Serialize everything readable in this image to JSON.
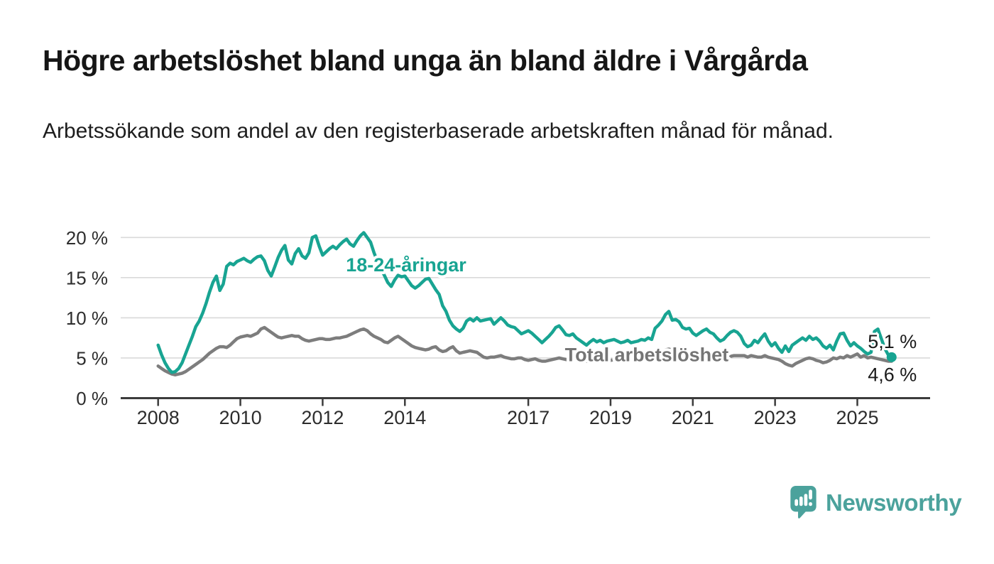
{
  "title": "Högre arbetslöshet bland unga än bland äldre i Vårgårda",
  "subtitle": "Arbetssökande som andel av den registerbaserade arbetskraften månad för månad.",
  "logo": {
    "brand": "Newsworthy",
    "icon": "speech-bubble-bar-chart-icon",
    "color": "#4ba29c"
  },
  "colors": {
    "youth_line": "#18a492",
    "total_line": "#7d7d7d",
    "total_label": "#757575",
    "axis": "#3c3c3c",
    "gridline": "#d9d9d9",
    "axis_text": "#2d2d2d",
    "end_label_text": "#1a1a1a"
  },
  "chart_data": {
    "type": "line",
    "unit": "%",
    "grid": "horizontal-only",
    "legend_position": "inline-labels",
    "x_start_year": 2008,
    "months_per_point": 1,
    "ylim": [
      0,
      21.5
    ],
    "y_axis": {
      "ticks": [
        {
          "value": 0,
          "label": "0 %"
        },
        {
          "value": 5,
          "label": "5 %"
        },
        {
          "value": 10,
          "label": "10 %"
        },
        {
          "value": 15,
          "label": "15 %"
        },
        {
          "value": 20,
          "label": "20 %"
        }
      ]
    },
    "x_axis": {
      "ticks": [
        {
          "year": 2008,
          "label": "2008"
        },
        {
          "year": 2010,
          "label": "2010"
        },
        {
          "year": 2012,
          "label": "2012"
        },
        {
          "year": 2014,
          "label": "2014"
        },
        {
          "year": 2017,
          "label": "2017"
        },
        {
          "year": 2019,
          "label": "2019"
        },
        {
          "year": 2021,
          "label": "2021"
        },
        {
          "year": 2023,
          "label": "2023"
        },
        {
          "year": 2025,
          "label": "2025"
        }
      ]
    },
    "series": [
      {
        "name": "18-24-åringar",
        "color": "#18a492",
        "end_value": 5.1,
        "end_marker": true,
        "end_label": {
          "text": "5,1 %",
          "dx": 1,
          "dy": -13
        },
        "label": {
          "text": "18-24-åringar",
          "year": 2014.03,
          "value": 16.6,
          "color": "#18a492"
        },
        "values": [
          6.6,
          5.4,
          4.4,
          3.7,
          3.2,
          3.3,
          3.7,
          4.4,
          5.5,
          6.6,
          7.7,
          8.9,
          9.6,
          10.6,
          11.8,
          13.2,
          14.4,
          15.2,
          13.4,
          14.2,
          16.4,
          16.8,
          16.6,
          17.0,
          17.2,
          17.4,
          17.1,
          16.9,
          17.3,
          17.6,
          17.7,
          17.1,
          15.9,
          15.2,
          16.3,
          17.5,
          18.4,
          19.0,
          17.2,
          16.7,
          18.0,
          18.6,
          17.7,
          17.4,
          18.1,
          20.0,
          20.2,
          18.9,
          17.8,
          18.2,
          18.6,
          18.9,
          18.6,
          19.1,
          19.5,
          19.8,
          19.2,
          18.9,
          19.6,
          20.2,
          20.6,
          20.0,
          19.4,
          18.1,
          17.0,
          16.1,
          15.3,
          14.4,
          13.9,
          14.7,
          15.3,
          15.1,
          15.2,
          14.6,
          14.0,
          13.7,
          14.0,
          14.4,
          14.8,
          14.9,
          14.2,
          13.5,
          12.9,
          11.5,
          10.8,
          9.7,
          9.0,
          8.6,
          8.3,
          8.7,
          9.6,
          9.9,
          9.6,
          10.0,
          9.6,
          9.7,
          9.8,
          9.9,
          9.2,
          9.6,
          10.0,
          9.6,
          9.1,
          8.9,
          8.8,
          8.4,
          8.0,
          8.2,
          8.4,
          8.1,
          7.7,
          7.3,
          6.9,
          7.3,
          7.7,
          8.2,
          8.8,
          9.0,
          8.5,
          7.9,
          7.8,
          8.0,
          7.5,
          7.2,
          6.9,
          6.6,
          7.0,
          7.3,
          7.0,
          7.2,
          6.9,
          7.1,
          7.2,
          7.3,
          7.1,
          6.9,
          7.0,
          7.2,
          6.9,
          7.0,
          7.1,
          7.3,
          7.2,
          7.5,
          7.3,
          8.7,
          9.1,
          9.6,
          10.4,
          10.8,
          9.7,
          9.8,
          9.5,
          8.8,
          8.6,
          8.7,
          8.1,
          7.8,
          8.1,
          8.4,
          8.6,
          8.2,
          8.0,
          7.5,
          7.1,
          7.3,
          7.8,
          8.2,
          8.4,
          8.2,
          7.7,
          6.8,
          6.4,
          6.6,
          7.2,
          6.9,
          7.5,
          8.0,
          7.1,
          6.5,
          6.9,
          6.2,
          5.7,
          6.5,
          5.8,
          6.6,
          6.9,
          7.2,
          7.5,
          7.2,
          7.7,
          7.3,
          7.5,
          7.1,
          6.5,
          6.2,
          6.6,
          6.0,
          7.1,
          8.0,
          8.1,
          7.2,
          6.5,
          6.9,
          6.5,
          6.2,
          5.8,
          5.5,
          5.7,
          8.3,
          8.6,
          7.4,
          6.2,
          5.4,
          5.1
        ]
      },
      {
        "name": "Total arbetslöshet",
        "color": "#7d7d7d",
        "end_value": 4.6,
        "end_marker": false,
        "end_label": {
          "text": "4,6 %",
          "dx": 1,
          "dy": 28
        },
        "label": {
          "text": "Total arbetslöshet",
          "year": 2019.88,
          "value": 5.39,
          "color": "#757575"
        },
        "values": [
          4.0,
          3.7,
          3.4,
          3.2,
          3.0,
          2.9,
          3.0,
          3.1,
          3.3,
          3.6,
          3.9,
          4.2,
          4.5,
          4.8,
          5.2,
          5.6,
          5.9,
          6.2,
          6.4,
          6.4,
          6.3,
          6.6,
          7.0,
          7.4,
          7.6,
          7.7,
          7.8,
          7.7,
          7.9,
          8.1,
          8.6,
          8.8,
          8.5,
          8.2,
          7.9,
          7.6,
          7.5,
          7.6,
          7.7,
          7.8,
          7.7,
          7.7,
          7.4,
          7.2,
          7.1,
          7.2,
          7.3,
          7.4,
          7.4,
          7.3,
          7.3,
          7.4,
          7.5,
          7.5,
          7.6,
          7.7,
          7.9,
          8.1,
          8.3,
          8.5,
          8.6,
          8.4,
          8.0,
          7.7,
          7.5,
          7.3,
          7.0,
          6.9,
          7.2,
          7.5,
          7.7,
          7.4,
          7.1,
          6.8,
          6.5,
          6.3,
          6.2,
          6.1,
          6.0,
          6.1,
          6.3,
          6.4,
          6.0,
          5.8,
          5.9,
          6.2,
          6.4,
          5.9,
          5.6,
          5.7,
          5.8,
          5.9,
          5.8,
          5.7,
          5.4,
          5.1,
          5.0,
          5.1,
          5.1,
          5.2,
          5.3,
          5.1,
          5.0,
          4.9,
          4.9,
          5.0,
          5.0,
          4.8,
          4.7,
          4.8,
          4.9,
          4.7,
          4.6,
          4.6,
          4.7,
          4.8,
          4.9,
          5.0,
          4.9,
          4.8,
          4.7,
          4.8,
          4.9,
          4.8,
          4.7,
          4.6,
          4.6,
          4.7,
          4.6,
          4.7,
          4.6,
          4.7,
          4.7,
          4.8,
          4.7,
          4.8,
          4.7,
          4.8,
          4.7,
          4.8,
          4.9,
          4.9,
          5.0,
          5.0,
          5.0,
          5.2,
          5.5,
          5.8,
          6.0,
          6.1,
          6.0,
          5.9,
          5.8,
          5.7,
          5.6,
          5.6,
          5.6,
          5.7,
          5.6,
          5.5,
          5.4,
          5.3,
          5.2,
          5.1,
          5.0,
          5.0,
          5.1,
          5.2,
          5.3,
          5.3,
          5.3,
          5.3,
          5.1,
          5.3,
          5.2,
          5.1,
          5.1,
          5.3,
          5.1,
          5.0,
          4.9,
          4.8,
          4.6,
          4.3,
          4.1,
          4.0,
          4.3,
          4.5,
          4.7,
          4.9,
          5.0,
          4.9,
          4.7,
          4.6,
          4.4,
          4.5,
          4.7,
          5.0,
          4.9,
          5.1,
          5.0,
          5.3,
          5.1,
          5.3,
          5.5,
          5.1,
          5.3,
          5.0,
          5.1,
          5.0,
          4.9,
          4.8,
          4.7,
          4.6,
          4.6
        ]
      }
    ]
  }
}
